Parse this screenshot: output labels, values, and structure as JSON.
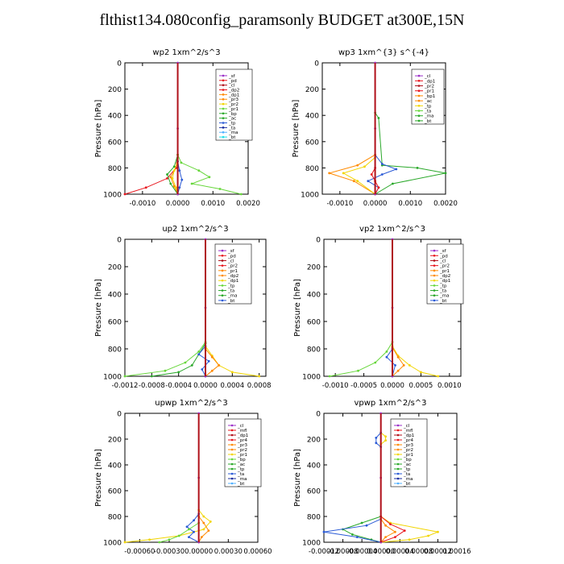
{
  "title": "flthist134.080config_paramsonly  BUDGET at300E,15N",
  "colors": {
    "purple": "#9b30c8",
    "red": "#e8141c",
    "darkred": "#b0101a",
    "orange": "#ff8a00",
    "yellow": "#f2d500",
    "green": "#2aa82a",
    "lightgreen": "#66d63a",
    "blue": "#2a5ad6",
    "darkblue": "#1a2ea0",
    "skyblue": "#50b0ff",
    "cyan": "#20e0e8"
  },
  "chart_data": [
    {
      "type": "line",
      "title": "wp2  1xm^2/s^3",
      "ylabel": "Pressure [hPa]",
      "xlim": [
        -0.0015,
        0.002
      ],
      "ylim": [
        0,
        1000
      ],
      "y_inverted": true,
      "xticks": [
        -0.001,
        0,
        0.001,
        0.002
      ],
      "xtick_labels": [
        "-0.0010",
        "0.0000",
        "0.0010",
        "0.0020"
      ],
      "yticks": [
        0,
        200,
        400,
        600,
        800,
        1000
      ],
      "ytick_labels": [
        "0",
        "200",
        "400",
        "600",
        "800",
        "1000"
      ],
      "legend": [
        "_sf",
        "_pd",
        "_cl",
        "_dp2",
        "_dp1",
        "_pr3",
        "_pr2",
        "_pr1",
        "_bp",
        "_ac",
        "_tp",
        "_ta",
        "_ma",
        "_bt"
      ],
      "series": [
        {
          "color": "#ff8a00",
          "x": [
            0,
            -5e-05,
            -0.0002,
            -0.0001,
            0
          ],
          "y": [
            700,
            800,
            870,
            940,
            1000
          ]
        },
        {
          "color": "#e8141c",
          "x": [
            0,
            -5e-05,
            -0.0003,
            -0.0009,
            -0.0015
          ],
          "y": [
            700,
            800,
            880,
            950,
            1000
          ]
        },
        {
          "color": "#2aa82a",
          "x": [
            0,
            -0.0001,
            -0.0003,
            -0.0002,
            0
          ],
          "y": [
            700,
            790,
            850,
            920,
            1000
          ]
        },
        {
          "color": "#f2d500",
          "x": [
            0,
            -0.0001,
            -0.00015,
            -5e-05,
            0
          ],
          "y": [
            750,
            820,
            880,
            950,
            1000
          ]
        },
        {
          "color": "#66d63a",
          "x": [
            0,
            0.0001,
            0.0006,
            0.0009,
            0.0004,
            0.0012,
            0.0018
          ],
          "y": [
            700,
            760,
            820,
            870,
            920,
            960,
            1000
          ]
        },
        {
          "color": "#2a5ad6",
          "x": [
            0,
            5e-05,
            0.00012,
            5e-05,
            0
          ],
          "y": [
            750,
            820,
            890,
            950,
            1000
          ]
        },
        {
          "color": "#9b30c8",
          "x": [
            0,
            0,
            0
          ],
          "y": [
            0,
            500,
            1000
          ]
        }
      ]
    },
    {
      "type": "line",
      "title": "wp3  1xm^{3} s^{-4}",
      "ylabel": "Pressure [hPa]",
      "xlim": [
        -0.0015,
        0.002
      ],
      "ylim": [
        0,
        1000
      ],
      "y_inverted": true,
      "xticks": [
        -0.001,
        0,
        0.001,
        0.002
      ],
      "xtick_labels": [
        "-0.0010",
        "0.0000",
        "0.0010",
        "0.0020"
      ],
      "yticks": [
        0,
        200,
        400,
        600,
        800,
        1000
      ],
      "ytick_labels": [
        "0",
        "200",
        "400",
        "600",
        "800",
        "1000"
      ],
      "legend": [
        "_cl",
        "_dp1",
        "_pr2",
        "_pr1",
        "_bp1",
        "_ac",
        "_tp",
        "_ta",
        "_ma",
        "_bt"
      ],
      "series": [
        {
          "color": "#2aa82a",
          "x": [
            0,
            0.0001,
            0.0002,
            0.0012,
            0.002,
            0.0005,
            0
          ],
          "y": [
            380,
            420,
            780,
            800,
            840,
            920,
            1000
          ]
        },
        {
          "color": "#2a5ad6",
          "x": [
            0,
            0.0002,
            0.0006,
            0.0002,
            -0.0002,
            0.0001,
            0
          ],
          "y": [
            700,
            770,
            810,
            850,
            900,
            950,
            1000
          ]
        },
        {
          "color": "#ff8a00",
          "x": [
            0,
            -0.0005,
            -0.0013,
            -0.0006,
            0
          ],
          "y": [
            700,
            780,
            840,
            900,
            1000
          ]
        },
        {
          "color": "#f2d500",
          "x": [
            0,
            -0.0003,
            -0.0009,
            -0.0005,
            0
          ],
          "y": [
            720,
            790,
            840,
            900,
            1000
          ]
        },
        {
          "color": "#e8141c",
          "x": [
            0,
            -0.0001,
            0,
            0.0001,
            0
          ],
          "y": [
            800,
            850,
            900,
            950,
            1000
          ]
        },
        {
          "color": "#9b30c8",
          "x": [
            0,
            0,
            0
          ],
          "y": [
            0,
            500,
            1000
          ]
        }
      ]
    },
    {
      "type": "line",
      "title": "up2  1xm^2/s^3",
      "ylabel": "Pressure [hPa]",
      "xlim": [
        -0.0012,
        0.0009
      ],
      "ylim": [
        0,
        1000
      ],
      "y_inverted": true,
      "xticks": [
        -0.0012,
        -0.0008,
        -0.0004,
        0,
        0.0004,
        0.0008
      ],
      "xtick_labels": [
        "-0.0012",
        "-0.0008",
        "-0.0004",
        "0.0000",
        "0.0004",
        "0.0008"
      ],
      "yticks": [
        0,
        200,
        400,
        600,
        800,
        1000
      ],
      "ytick_labels": [
        "0",
        "200",
        "400",
        "600",
        "800",
        "1000"
      ],
      "legend": [
        "_sf",
        "_pd",
        "_cl",
        "_pr2",
        "_pr1",
        "_dp2",
        "_dp1",
        "_tp",
        "_ta",
        "_ma",
        "_bt"
      ],
      "series": [
        {
          "color": "#66d63a",
          "x": [
            0,
            -0.0001,
            -0.0003,
            -0.0006,
            -0.0012
          ],
          "y": [
            750,
            820,
            900,
            960,
            1000
          ]
        },
        {
          "color": "#2aa82a",
          "x": [
            0,
            -0.0001,
            -0.0002,
            -0.0004,
            -0.0008
          ],
          "y": [
            760,
            840,
            920,
            970,
            1000
          ]
        },
        {
          "color": "#f2d500",
          "x": [
            0,
            0.0001,
            0.0002,
            0.0004,
            0.0008
          ],
          "y": [
            780,
            850,
            920,
            970,
            1000
          ]
        },
        {
          "color": "#ff8a00",
          "x": [
            0,
            0.0001,
            0.0002,
            0.0001,
            0
          ],
          "y": [
            800,
            860,
            920,
            960,
            1000
          ]
        },
        {
          "color": "#2a5ad6",
          "x": [
            0,
            -0.0001,
            5e-05,
            -5e-05,
            0
          ],
          "y": [
            780,
            840,
            890,
            950,
            1000
          ]
        },
        {
          "color": "#9b30c8",
          "x": [
            0,
            0,
            0
          ],
          "y": [
            0,
            500,
            1000
          ]
        }
      ]
    },
    {
      "type": "line",
      "title": "vp2  1xm^2/s^3",
      "ylabel": "Pressure [hPa]",
      "xlim": [
        -0.0012,
        0.0012
      ],
      "ylim": [
        0,
        1000
      ],
      "y_inverted": true,
      "xticks": [
        -0.001,
        -0.0005,
        0,
        0.0005,
        0.001
      ],
      "xtick_labels": [
        "-0.0010",
        "-0.0005",
        "0.0000",
        "0.0005",
        "0.0010"
      ],
      "yticks": [
        0,
        200,
        400,
        600,
        800,
        1000
      ],
      "ytick_labels": [
        "0",
        "200",
        "400",
        "600",
        "800",
        "1000"
      ],
      "legend": [
        "_sf",
        "_pd",
        "_cl",
        "_pr2",
        "_pr1",
        "_dp2",
        "_dp1",
        "_tp",
        "_ta",
        "_ma",
        "_bt"
      ],
      "series": [
        {
          "color": "#66d63a",
          "x": [
            0,
            -0.0001,
            -0.0003,
            -0.0006,
            -0.0011
          ],
          "y": [
            750,
            820,
            900,
            960,
            1000
          ]
        },
        {
          "color": "#f2d500",
          "x": [
            0,
            0.0001,
            0.0003,
            0.0005,
            0.0008
          ],
          "y": [
            780,
            850,
            920,
            970,
            1000
          ]
        },
        {
          "color": "#ff8a00",
          "x": [
            0,
            0.0001,
            0.0002,
            0.0001,
            0
          ],
          "y": [
            790,
            860,
            920,
            960,
            1000
          ]
        },
        {
          "color": "#2a5ad6",
          "x": [
            0,
            -0.0001,
            5e-05,
            0
          ],
          "y": [
            800,
            860,
            920,
            1000
          ]
        },
        {
          "color": "#9b30c8",
          "x": [
            0,
            0,
            0
          ],
          "y": [
            0,
            500,
            1000
          ]
        }
      ]
    },
    {
      "type": "line",
      "title": "upwp  1xm^2/s^3",
      "ylabel": "Pressure [hPa]",
      "xlim": [
        -0.00075,
        0.0006
      ],
      "ylim": [
        0,
        1000
      ],
      "y_inverted": true,
      "xticks": [
        -0.0006,
        -0.0003,
        0,
        0.0003,
        0.0006
      ],
      "xtick_labels": [
        "-0.00060",
        "-0.00030",
        "0.00000",
        "0.00030",
        "0.00060"
      ],
      "yticks": [
        0,
        200,
        400,
        600,
        800,
        1000
      ],
      "ytick_labels": [
        "0",
        "200",
        "400",
        "600",
        "800",
        "1000"
      ],
      "legend": [
        "_cl",
        "_mfl",
        "_dp1",
        "_pr4",
        "_pr3",
        "_pr2",
        "_pr1",
        "_bp",
        "_ac",
        "_tp",
        "_ta",
        "_ma",
        "_bt"
      ],
      "series": [
        {
          "color": "#f2d500",
          "x": [
            0,
            5e-05,
            0.00012,
            5e-05,
            -0.0002,
            -0.0005,
            -0.00075
          ],
          "y": [
            750,
            800,
            840,
            900,
            950,
            980,
            1000
          ]
        },
        {
          "color": "#2a5ad6",
          "x": [
            0,
            -5e-05,
            -0.00012,
            -5e-05,
            -0.0001,
            0
          ],
          "y": [
            780,
            830,
            880,
            920,
            960,
            1000
          ]
        },
        {
          "color": "#66d63a",
          "x": [
            0,
            -0.0001,
            -0.0002,
            -0.0003,
            -0.0004
          ],
          "y": [
            850,
            900,
            950,
            980,
            1000
          ]
        },
        {
          "color": "#ff8a00",
          "x": [
            0,
            5e-05,
            0.0001,
            3e-05,
            0
          ],
          "y": [
            800,
            850,
            910,
            960,
            1000
          ]
        },
        {
          "color": "#9b30c8",
          "x": [
            0,
            0,
            0
          ],
          "y": [
            0,
            500,
            1000
          ]
        }
      ]
    },
    {
      "type": "line",
      "title": "vpwp  1xm^2/s^3",
      "ylabel": "Pressure [hPa]",
      "xlim": [
        -0.00012,
        0.00016
      ],
      "ylim": [
        0,
        1000
      ],
      "y_inverted": true,
      "xticks": [
        -0.00012,
        -8e-05,
        -4e-05,
        0,
        4e-05,
        8e-05,
        0.00012,
        0.00016
      ],
      "xtick_labels": [
        "-0.00012",
        "-0.00008",
        "-0.00004",
        "0.00000",
        "0.00004",
        "0.00008",
        "0.00012",
        "0.00016"
      ],
      "yticks": [
        0,
        200,
        400,
        600,
        800,
        1000
      ],
      "ytick_labels": [
        "0",
        "200",
        "400",
        "600",
        "800",
        "1000"
      ],
      "legend": [
        "_cl",
        "_mfl",
        "_dp1",
        "_pr4",
        "_pr3",
        "_pr2",
        "_pr1",
        "_bp",
        "_ac",
        "_tp",
        "_ta",
        "_ma",
        "_bt"
      ],
      "series": [
        {
          "color": "#f2d500",
          "x": [
            0,
            2e-05,
            0.00012,
            0.0001,
            6e-05,
            0
          ],
          "y": [
            800,
            850,
            920,
            950,
            980,
            1000
          ]
        },
        {
          "color": "#2aa82a",
          "x": [
            0,
            -4e-05,
            -8e-05,
            -6e-05,
            -2e-05,
            0
          ],
          "y": [
            800,
            850,
            900,
            940,
            980,
            1000
          ]
        },
        {
          "color": "#2a5ad6",
          "x": [
            0,
            -3e-05,
            -0.00012,
            -5e-05,
            0
          ],
          "y": [
            820,
            870,
            920,
            960,
            1000
          ]
        },
        {
          "color": "#e8141c",
          "x": [
            0,
            2e-05,
            5e-05,
            3e-05,
            0
          ],
          "y": [
            800,
            860,
            910,
            960,
            1000
          ]
        },
        {
          "color": "#ff8a00",
          "x": [
            0,
            1e-05,
            3e-05,
            1e-05,
            0
          ],
          "y": [
            820,
            870,
            920,
            960,
            1000
          ]
        },
        {
          "color": "#f2d500",
          "x": [
            0,
            1e-05,
            1e-05,
            0,
            0
          ],
          "y": [
            150,
            180,
            210,
            240,
            260
          ]
        },
        {
          "color": "#2a5ad6",
          "x": [
            0,
            -1e-05,
            -1e-05,
            0
          ],
          "y": [
            150,
            190,
            230,
            260
          ]
        },
        {
          "color": "#9b30c8",
          "x": [
            0,
            0,
            0
          ],
          "y": [
            0,
            500,
            1000
          ]
        }
      ]
    }
  ]
}
